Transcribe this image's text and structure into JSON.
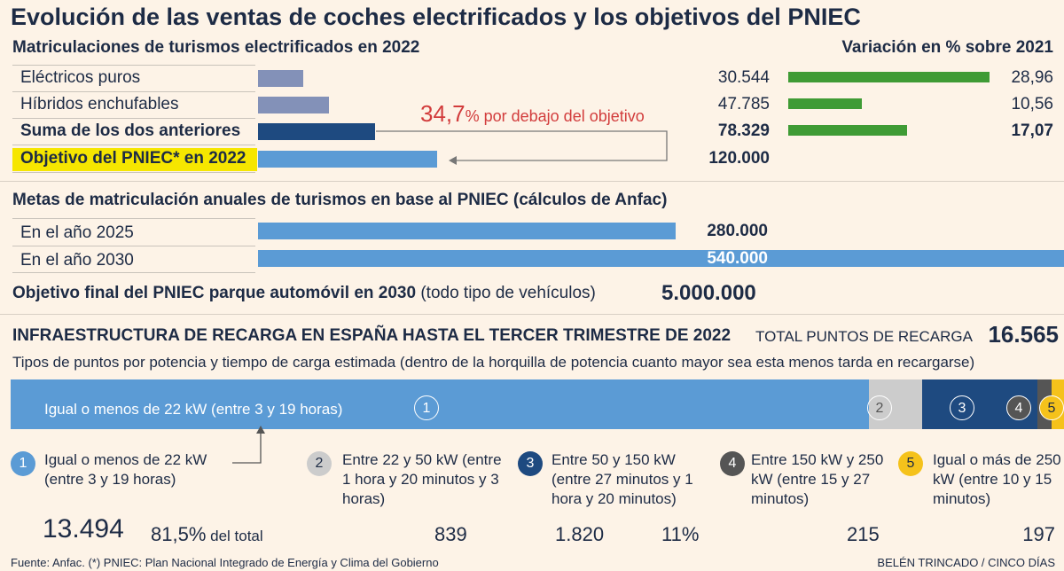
{
  "title": "Evolución de las ventas de coches electrificados y los objetivos del PNIEC",
  "section1": {
    "heading": "Matriculaciones de turismos electrificados en 2022",
    "variation_heading": "Variación en % sobre 2021",
    "gap_value": "34,7",
    "gap_text": "% por debajo del objetivo"
  },
  "section2": {
    "heading": "Metas de matriculación anuales de turismos en base al PNIEC (cálculos de Anfac)"
  },
  "section3": {
    "label": "Objetivo final del PNIEC parque automóvil en 2030",
    "note": "(todo tipo de vehículos)",
    "value": "5.000.000"
  },
  "infra": {
    "heading": "INFRAESTRUCTURA DE RECARGA EN ESPAÑA HASTA EL TERCER TRIMESTRE DE 2022",
    "total_label": "TOTAL PUNTOS DE RECARGA",
    "total_value": "16.565",
    "subtitle": "Tipos de puntos por potencia y tiempo de carga estimada (dentro de la horquilla de potencia cuanto mayor sea esta menos tarda en recargarse)",
    "bar_label": "Igual o menos de 22 kW (entre 3 y 19 horas)",
    "pct_1": "81,5%",
    "pct_1_suffix": " del total",
    "pct_3": "11%"
  },
  "colors": {
    "light_blue": "#5b9bd5",
    "slate": "#8391b8",
    "navy": "#1e4a80",
    "green": "#3f9b35",
    "highlight": "#f6e600",
    "red": "#d23c3c",
    "gray": "#cccccc",
    "dark_gray": "#555555",
    "yellow": "#f5c21b"
  },
  "chart_data": [
    {
      "type": "bar",
      "title": "Matriculaciones de turismos electrificados en 2022",
      "categories": [
        "Eléctricos puros",
        "Híbridos enchufables",
        "Suma de los dos anteriores",
        "Objetivo del PNIEC* en 2022"
      ],
      "values": [
        30544,
        47785,
        78329,
        120000
      ],
      "value_labels": [
        "30.544",
        "47.785",
        "78.329",
        "120.000"
      ]
    },
    {
      "type": "bar",
      "title": "Variación en % sobre 2021",
      "categories": [
        "Eléctricos puros",
        "Híbridos enchufables",
        "Suma de los dos anteriores"
      ],
      "values": [
        28.96,
        10.56,
        17.07
      ],
      "value_labels": [
        "28,96",
        "10,56",
        "17,07"
      ]
    },
    {
      "type": "bar",
      "title": "Metas de matriculación anuales de turismos en base al PNIEC (cálculos de Anfac)",
      "categories": [
        "En el año 2025",
        "En el año 2030"
      ],
      "values": [
        280000,
        540000
      ],
      "value_labels": [
        "280.000",
        "540.000"
      ]
    },
    {
      "type": "bar",
      "title": "Infraestructura de recarga en España hasta el tercer trimestre de 2022",
      "categories": [
        "1",
        "2",
        "3",
        "4",
        "5"
      ],
      "descriptions": [
        "Igual o menos de 22 kW (entre 3 y 19 horas)",
        "Entre 22 y 50 kW (entre 1 hora y 20 minutos y 3 horas)",
        "Entre 50 y 150 kW (entre 27 minutos y 1 hora y 20 minutos)",
        "Entre 150 kW y 250 kW (entre 15 y 27 minutos)",
        "Igual o más de 250 kW (entre 10 y 15 minutos)"
      ],
      "values": [
        13494,
        839,
        1820,
        215,
        197
      ],
      "value_labels": [
        "13.494",
        "839",
        "1.820",
        "215",
        "197"
      ]
    }
  ],
  "footer": {
    "source": "Fuente: Anfac. (*) PNIEC: Plan Nacional Integrado de Energía y Clima del Gobierno",
    "credit": "BELÉN TRINCADO / CINCO DÍAS"
  }
}
